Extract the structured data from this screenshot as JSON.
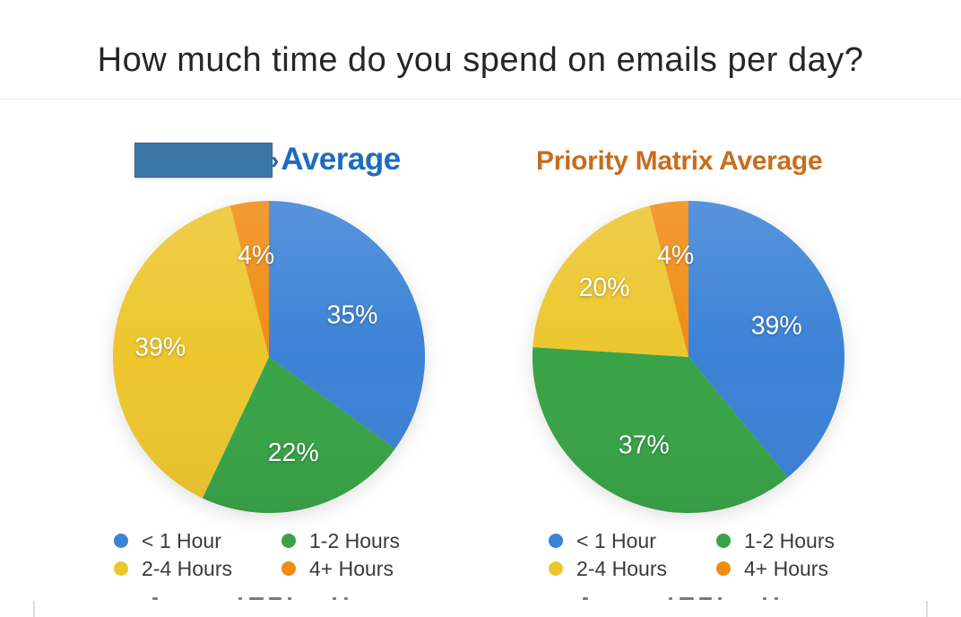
{
  "page": {
    "title": "How much time do you spend on emails per day?",
    "divider_color": "#e9e9e9"
  },
  "palette": {
    "blue": "#3c82d6",
    "green": "#39a347",
    "yellow": "#edc62e",
    "orange": "#ef8c12",
    "left_header_text": "#1e6cc0",
    "right_header_text": "#c76d1e",
    "redaction_rectangle": "#3a77a6"
  },
  "chart_data": [
    {
      "type": "pie",
      "title": "Average",
      "title_color": "#1e6cc0",
      "title_redacted_prefix": true,
      "redaction_color": "#3a77a6",
      "categories": [
        "< 1 Hour",
        "1-2 Hours",
        "2-4 Hours",
        "4+ Hours"
      ],
      "values": [
        35,
        22,
        39,
        4
      ],
      "labels": [
        "35%",
        "22%",
        "39%",
        "4%"
      ],
      "colors": [
        "#3c82d6",
        "#39a347",
        "#edc62e",
        "#ef8c12"
      ],
      "start": "12-oclock",
      "direction": "clockwise",
      "label_radius": [
        0.6,
        0.63,
        0.7,
        0.66
      ],
      "legend_position": "bottom"
    },
    {
      "type": "pie",
      "title": "Priority Matrix Average",
      "title_color": "#c76d1e",
      "title_redacted_prefix": false,
      "categories": [
        "< 1 Hour",
        "1-2 Hours",
        "2-4 Hours",
        "4+ Hours"
      ],
      "values": [
        39,
        37,
        20,
        4
      ],
      "labels": [
        "39%",
        "37%",
        "20%",
        "4%"
      ],
      "colors": [
        "#3c82d6",
        "#39a347",
        "#edc62e",
        "#ef8c12"
      ],
      "start": "12-oclock",
      "direction": "clockwise",
      "label_radius": [
        0.6,
        0.63,
        0.7,
        0.66
      ],
      "legend_position": "bottom"
    }
  ]
}
